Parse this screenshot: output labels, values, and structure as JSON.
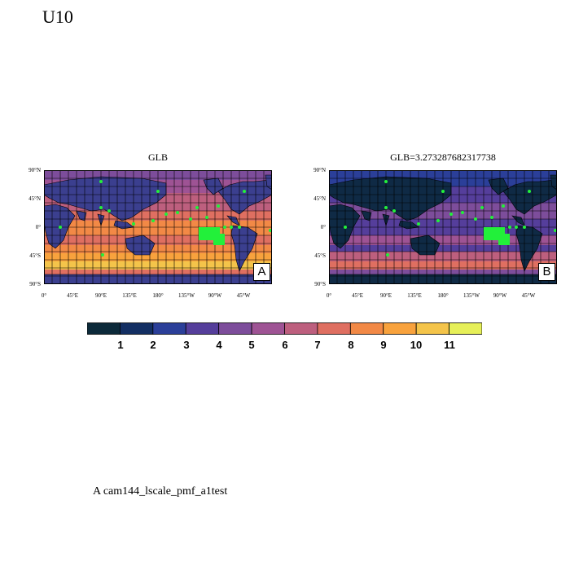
{
  "page_title": "U10",
  "panels": [
    {
      "id": "A",
      "title": "GLB",
      "tag": "A"
    },
    {
      "id": "B",
      "title": "GLB=3.273287682317738",
      "tag": "B"
    }
  ],
  "lat_labels": [
    "90°N",
    "45°N",
    "0°",
    "45°S",
    "90°S"
  ],
  "lon_labels": [
    "0°",
    "45°E",
    "90°E",
    "135°E",
    "180°",
    "135°W",
    "90°W",
    "45°W"
  ],
  "colorbar": {
    "labels": [
      "1",
      "2",
      "3",
      "4",
      "5",
      "6",
      "7",
      "8",
      "9",
      "10",
      "11"
    ],
    "colors": [
      "#0c2a3a",
      "#132f63",
      "#2b3f99",
      "#553e9b",
      "#7d4d9b",
      "#9e5394",
      "#bd5f7e",
      "#df6f61",
      "#f28946",
      "#f8a23d",
      "#f4c44a",
      "#e6ef58"
    ]
  },
  "markers_color": "#22f03a",
  "footnote": "A  cam144_lscale_pmf_a1test"
}
